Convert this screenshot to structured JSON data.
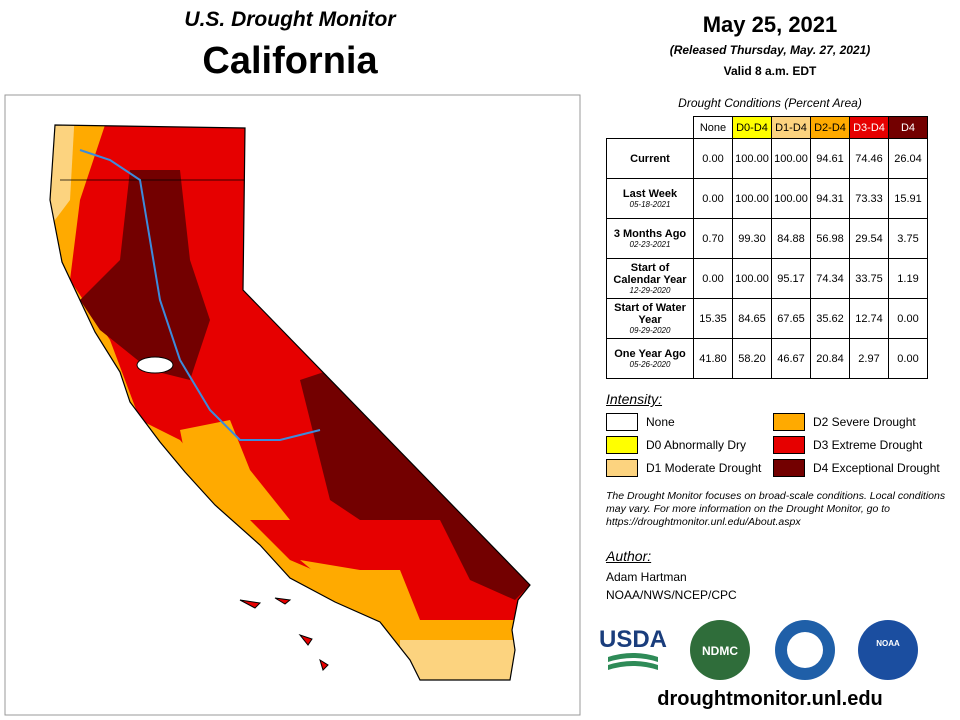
{
  "header": {
    "subtitle": "U.S. Drought Monitor",
    "title": "California"
  },
  "date": {
    "date": "May 25, 2021",
    "released": "(Released Thursday, May. 27, 2021)",
    "valid": "Valid 8 a.m. EDT"
  },
  "table": {
    "caption": "Drought Conditions (Percent Area)",
    "columns": [
      "None",
      "D0-D4",
      "D1-D4",
      "D2-D4",
      "D3-D4",
      "D4"
    ],
    "column_colors": [
      "#ffffff",
      "#ffff00",
      "#fcd37f",
      "#ffaa00",
      "#e60000",
      "#730000"
    ],
    "rows": [
      {
        "label": "Current",
        "values": [
          "0.00",
          "100.00",
          "100.00",
          "94.61",
          "74.46",
          "26.04"
        ]
      },
      {
        "label": "Last Week",
        "date": "05-18-2021",
        "values": [
          "0.00",
          "100.00",
          "100.00",
          "94.31",
          "73.33",
          "15.91"
        ]
      },
      {
        "label": "3 Months Ago",
        "date": "02-23-2021",
        "values": [
          "0.70",
          "99.30",
          "84.88",
          "56.98",
          "29.54",
          "3.75"
        ]
      },
      {
        "label": "Start of Calendar Year",
        "date": "12-29-2020",
        "values": [
          "0.00",
          "100.00",
          "95.17",
          "74.34",
          "33.75",
          "1.19"
        ]
      },
      {
        "label": "Start of Water Year",
        "date": "09-29-2020",
        "values": [
          "15.35",
          "84.65",
          "67.65",
          "35.62",
          "12.74",
          "0.00"
        ]
      },
      {
        "label": "One Year Ago",
        "date": "05-26-2020",
        "values": [
          "41.80",
          "58.20",
          "46.67",
          "20.84",
          "2.97",
          "0.00"
        ]
      }
    ]
  },
  "legend": {
    "title": "Intensity:",
    "items": [
      {
        "label": "None",
        "color": "#ffffff"
      },
      {
        "label": "D0 Abnormally Dry",
        "color": "#ffff00"
      },
      {
        "label": "D1 Moderate Drought",
        "color": "#fcd37f"
      },
      {
        "label": "D2 Severe Drought",
        "color": "#ffaa00"
      },
      {
        "label": "D3 Extreme Drought",
        "color": "#e60000"
      },
      {
        "label": "D4 Exceptional Drought",
        "color": "#730000"
      }
    ]
  },
  "note": "The Drought Monitor focuses on broad-scale conditions. Local conditions may vary. For more information on the Drought Monitor, go to https://droughtmonitor.unl.edu/About.aspx",
  "author": {
    "heading": "Author:",
    "lines": [
      "Adam Hartman",
      "NOAA/NWS/NCEP/CPC"
    ]
  },
  "logos": [
    "USDA",
    "NDMC",
    "NOAA"
  ],
  "url": "droughtmonitor.unl.edu"
}
